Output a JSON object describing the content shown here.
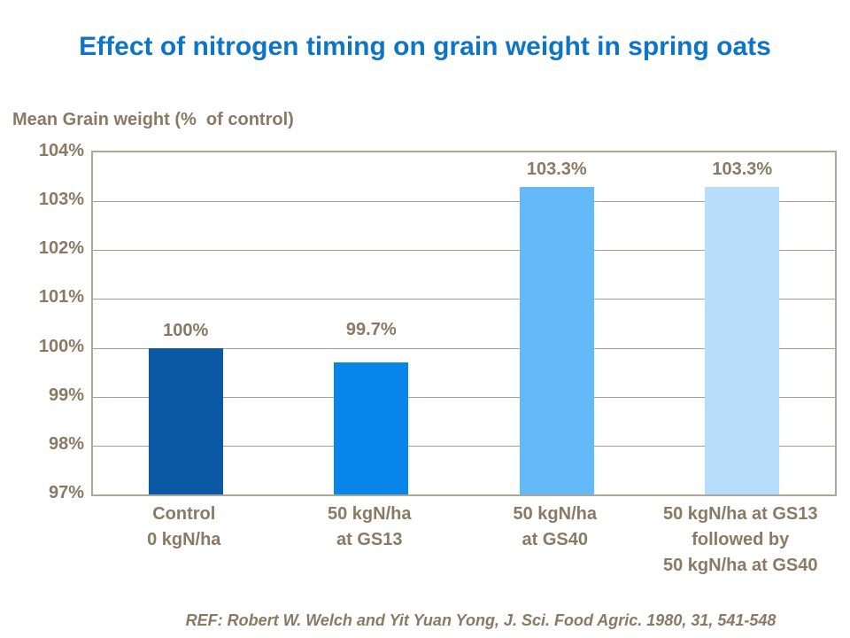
{
  "title": "Effect of nitrogen timing on grain weight in spring oats",
  "footer": {
    "ref": "REF: Robert W. Welch and Yit Yuan Yong, J. Sci. Food Agric. 1980, 31, 541-548"
  },
  "colors": {
    "accent": "#0E74C8",
    "brown": "#8A7963",
    "frame": "#B0A698",
    "grid": "#A89D90"
  },
  "chart_data": {
    "type": "bar",
    "title": "Effect of nitrogen timing on grain weight in spring oats",
    "ylabel": "Mean Grain weight (%  of control)",
    "xlabel": "",
    "ylim": [
      97,
      104
    ],
    "grid": true,
    "legend": false,
    "categories": [
      "Control\n0 kgN/ha",
      "50 kgN/ha\nat GS13",
      "50 kgN/ha\nat GS40",
      "50 kgN/ha at GS13\nfollowed by\n50 kgN/ha at GS40"
    ],
    "values": [
      100,
      99.7,
      103.3,
      103.3
    ],
    "value_labels": [
      "100%",
      "99.7%",
      "103.3%",
      "103.3%"
    ],
    "label_dy": [
      0,
      17,
      0,
      0
    ],
    "bar_colors": [
      "#0B59A5",
      "#0885E8",
      "#64BAF8",
      "#B8DDFB"
    ],
    "yticks": [
      {
        "label": "104%",
        "value": 104
      },
      {
        "label": "103%",
        "value": 103
      },
      {
        "label": "102%",
        "value": 102
      },
      {
        "label": "101%",
        "value": 101
      },
      {
        "label": "100%",
        "value": 100
      },
      {
        "label": "99%",
        "value": 99
      },
      {
        "label": "98%",
        "value": 98
      },
      {
        "label": "97%",
        "value": 97
      }
    ]
  }
}
